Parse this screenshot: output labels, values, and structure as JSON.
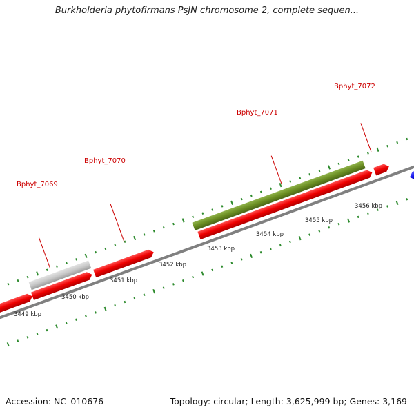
{
  "title": "Burkholderia phytofirmans PsJN chromosome 2, complete sequen...",
  "footer": {
    "accession": "Accession: NC_010676",
    "summary": "Topology: circular; Length: 3,625,999 bp; Genes: 3,169"
  },
  "colors": {
    "gene_forward": "#ee0000",
    "gene_highlight": "#6b8e23",
    "gene_gray": "#c8c8c8",
    "gene_reverse": "#1a1aee",
    "backbone": "#808080",
    "ticks_upper": "#2e8b2e",
    "ticks_lower": "#2e8b2e",
    "label": "#cc0000"
  },
  "genes": [
    {
      "label": "Bphyt_7069"
    },
    {
      "label": "Bphyt_7070"
    },
    {
      "label": "Bphyt_7071"
    },
    {
      "label": "Bphyt_7072"
    }
  ],
  "scale": [
    {
      "label": "3449 kbp"
    },
    {
      "label": "3450 kbp"
    },
    {
      "label": "3451 kbp"
    },
    {
      "label": "3452 kbp"
    },
    {
      "label": "3453 kbp"
    },
    {
      "label": "3454 kbp"
    },
    {
      "label": "3455 kbp"
    },
    {
      "label": "3456 kbp"
    }
  ]
}
